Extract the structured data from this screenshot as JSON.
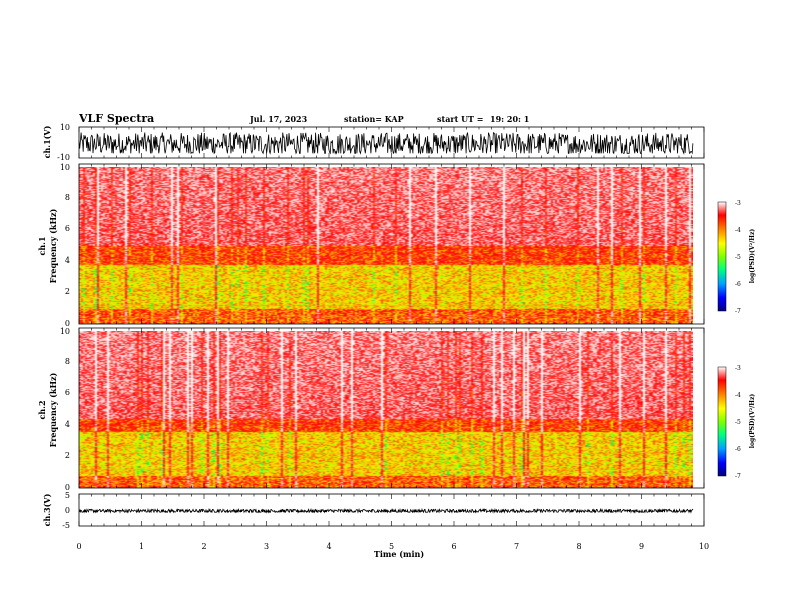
{
  "header": {
    "title": "VLF Spectra",
    "date": "Jul. 17, 2023",
    "station": "station= KAP",
    "start": "start UT =",
    "start_time": "19: 20: 1"
  },
  "colors": {
    "colormap": [
      "#000080",
      "#0000ff",
      "#00a0ff",
      "#00ff80",
      "#80ff00",
      "#ffff00",
      "#ff8000",
      "#ff0000",
      "#ffffff"
    ],
    "waveform": "#000000"
  },
  "chart_data": [
    {
      "type": "line",
      "panel": "ch1-waveform",
      "ylabel": "ch.1(V)",
      "ylim": [
        -10,
        10
      ],
      "yticks": [
        "10",
        "-10"
      ],
      "xlim": [
        0,
        10
      ],
      "x_extent_min": 9.83,
      "description_values": {
        "mean": -1,
        "amplitude_min": -7,
        "amplitude_max": 8
      }
    },
    {
      "type": "heatmap",
      "panel": "ch1-spectrogram",
      "ylabel": "ch.1\nFrequency (kHz)",
      "ylabel_top": "ch.1",
      "ylabel_bottom": "Frequency (kHz)",
      "ylim": [
        0,
        10
      ],
      "yticks": [
        "0",
        "2",
        "4",
        "6",
        "8",
        "10"
      ],
      "xlim": [
        0,
        10
      ],
      "x_extent_min": 9.83,
      "colorbar": {
        "label": "log(PSD)(V²/Hz)",
        "range": [
          -7,
          -3
        ],
        "ticks": [
          "-3",
          "-4",
          "-5",
          "-6",
          "-7"
        ]
      },
      "bands_khz": {
        "strong_low": 1.0,
        "strong_high": 3.8,
        "moderate_high": 5.0
      }
    },
    {
      "type": "heatmap",
      "panel": "ch2-spectrogram",
      "ylabel": "ch.2\nFrequency (kHz)",
      "ylabel_top": "ch.2",
      "ylabel_bottom": "Frequency (kHz)",
      "ylim": [
        0,
        10
      ],
      "yticks": [
        "0",
        "2",
        "4",
        "6",
        "8",
        "10"
      ],
      "xlim": [
        0,
        10
      ],
      "x_extent_min": 9.83,
      "colorbar": {
        "label": "log(PSD)(V²/Hz)",
        "range": [
          -7,
          -3
        ],
        "ticks": [
          "-3",
          "-4",
          "-5",
          "-6",
          "-7"
        ]
      },
      "bands_khz": {
        "strong_low": 0.8,
        "strong_high": 3.6,
        "moderate_high": 4.4
      }
    },
    {
      "type": "line",
      "panel": "ch3-waveform",
      "ylabel": "ch.3(V)",
      "ylim": [
        -5,
        5
      ],
      "yticks": [
        "5",
        "0",
        "-5"
      ],
      "xlim": [
        0,
        10
      ],
      "x_extent_min": 9.83,
      "xlabel": "Time (min)",
      "xticks": [
        "0",
        "1",
        "2",
        "3",
        "4",
        "5",
        "6",
        "7",
        "8",
        "9",
        "10"
      ],
      "description_values": {
        "mean": -0.3,
        "amplitude_min": -0.7,
        "amplitude_max": 0.2
      }
    }
  ]
}
